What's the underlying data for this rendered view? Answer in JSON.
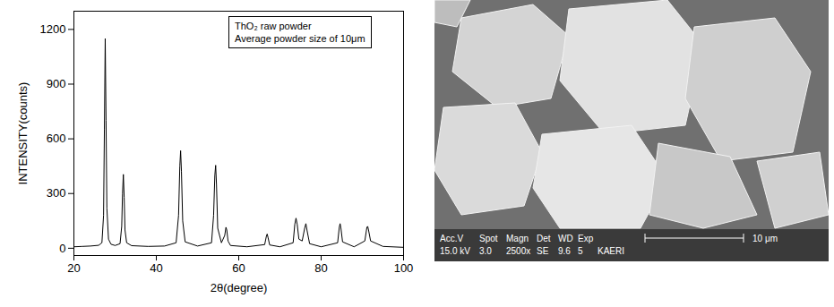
{
  "chart_data": {
    "type": "line",
    "x_label": "2θ(degree)",
    "y_label": "INTENSITY(counts)",
    "annotations": [
      "ThO₂ raw powder",
      "Average powder size of 10μm"
    ],
    "x": [
      20,
      22,
      24,
      26,
      26.8,
      27.2,
      27.4,
      27.6,
      27.8,
      28.0,
      28.4,
      29,
      30,
      31.2,
      31.6,
      31.8,
      32.0,
      32.2,
      32.4,
      32.8,
      34,
      38,
      42,
      44.8,
      45.4,
      45.7,
      45.9,
      46.1,
      46.4,
      47,
      50,
      53.4,
      53.9,
      54.2,
      54.4,
      54.6,
      54.9,
      55.8,
      56.6,
      56.9,
      57.1,
      57.4,
      58,
      62,
      66.3,
      66.7,
      66.9,
      67.1,
      67.5,
      70,
      73.2,
      73.6,
      73.9,
      74.2,
      74.6,
      75.4,
      76.0,
      76.3,
      76.6,
      77.2,
      80,
      84.0,
      84.4,
      84.6,
      84.8,
      85.2,
      88,
      90.6,
      91.1,
      91.3,
      91.5,
      92,
      95,
      100
    ],
    "values": [
      8,
      10,
      12,
      16,
      30,
      180,
      650,
      1150,
      700,
      220,
      50,
      22,
      15,
      25,
      120,
      300,
      405,
      280,
      100,
      30,
      14,
      10,
      12,
      30,
      180,
      450,
      535,
      420,
      150,
      35,
      12,
      30,
      180,
      400,
      455,
      350,
      110,
      30,
      70,
      115,
      100,
      40,
      15,
      8,
      20,
      65,
      78,
      60,
      18,
      8,
      30,
      130,
      165,
      130,
      50,
      40,
      110,
      135,
      95,
      25,
      8,
      30,
      115,
      135,
      110,
      35,
      8,
      40,
      115,
      120,
      100,
      40,
      10,
      5
    ],
    "color": "#000000",
    "xlim": [
      20,
      100
    ],
    "xticks": [
      20,
      40,
      60,
      80,
      100
    ],
    "ylim": [
      -40,
      1300
    ],
    "yticks": [
      0,
      300,
      600,
      900,
      1200
    ],
    "grid": false
  },
  "image": {
    "info_headers": [
      "Acc.V",
      "Spot",
      "Magn",
      "Det",
      "WD",
      "Exp"
    ],
    "info_values": [
      "15.0 kV",
      "3.0",
      "2500x",
      "SE",
      "9.6",
      "5"
    ],
    "lab": "KAERI",
    "scale_bar": "10 μm"
  }
}
